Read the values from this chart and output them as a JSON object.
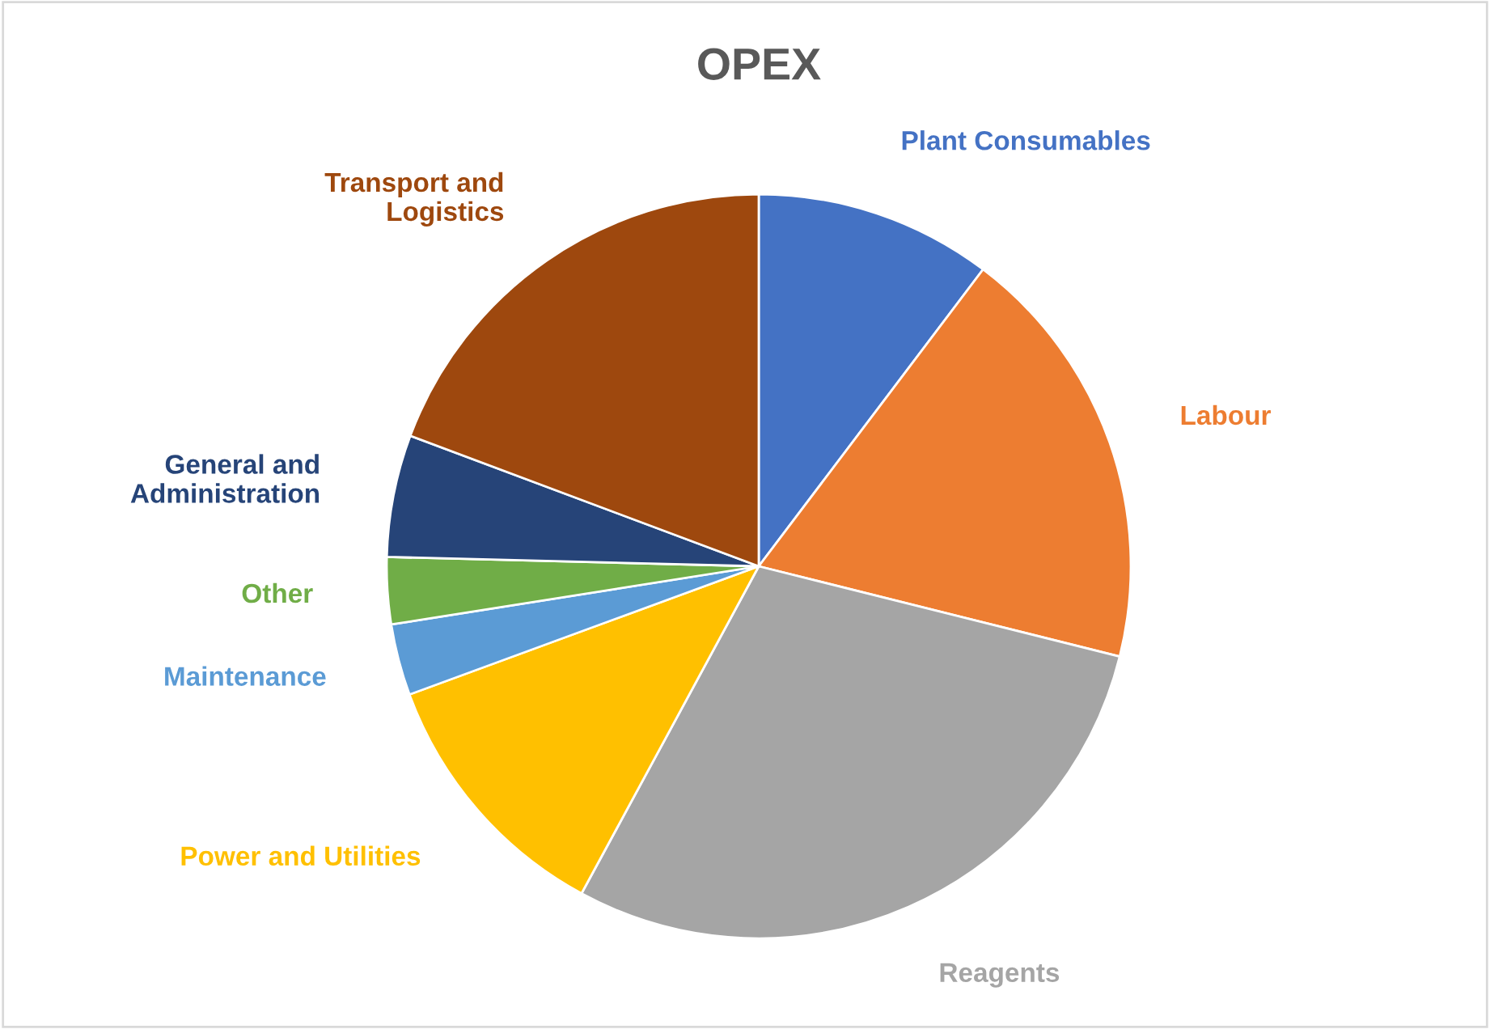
{
  "chart_data": {
    "type": "pie",
    "title": "OPEX",
    "categories": [
      "Plant Consumables",
      "Labour",
      "Reagents",
      "Power and Utilities",
      "Maintenance",
      "Other",
      "General and\nAdministration",
      "Transport and\nLogistics"
    ],
    "values": [
      10.3,
      18.6,
      29.0,
      11.5,
      3.1,
      2.9,
      5.3,
      19.3
    ],
    "colors": [
      "#4472c4",
      "#ed7d31",
      "#a5a5a5",
      "#ffc000",
      "#5b9bd5",
      "#70ad47",
      "#264478",
      "#9e480e"
    ],
    "legend": false
  }
}
